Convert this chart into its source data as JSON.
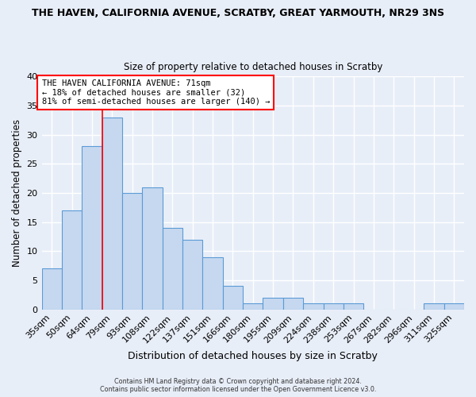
{
  "title": "THE HAVEN, CALIFORNIA AVENUE, SCRATBY, GREAT YARMOUTH, NR29 3NS",
  "subtitle": "Size of property relative to detached houses in Scratby",
  "xlabel": "Distribution of detached houses by size in Scratby",
  "ylabel": "Number of detached properties",
  "categories": [
    "35sqm",
    "50sqm",
    "64sqm",
    "79sqm",
    "93sqm",
    "108sqm",
    "122sqm",
    "137sqm",
    "151sqm",
    "166sqm",
    "180sqm",
    "195sqm",
    "209sqm",
    "224sqm",
    "238sqm",
    "253sqm",
    "267sqm",
    "282sqm",
    "296sqm",
    "311sqm",
    "325sqm"
  ],
  "values": [
    7,
    17,
    28,
    33,
    20,
    21,
    14,
    12,
    9,
    4,
    1,
    2,
    2,
    1,
    1,
    1,
    0,
    0,
    0,
    1,
    1
  ],
  "bar_color": "#c5d8f0",
  "bar_edge_color": "#5b9bd5",
  "background_color": "#e8eef8",
  "grid_color": "#ffffff",
  "red_line_x": 3.5,
  "annotation_title": "THE HAVEN CALIFORNIA AVENUE: 71sqm",
  "annotation_line1": "← 18% of detached houses are smaller (32)",
  "annotation_line2": "81% of semi-detached houses are larger (140) →",
  "footer1": "Contains HM Land Registry data © Crown copyright and database right 2024.",
  "footer2": "Contains public sector information licensed under the Open Government Licence v3.0.",
  "ylim": [
    0,
    40
  ],
  "yticks": [
    0,
    5,
    10,
    15,
    20,
    25,
    30,
    35,
    40
  ]
}
